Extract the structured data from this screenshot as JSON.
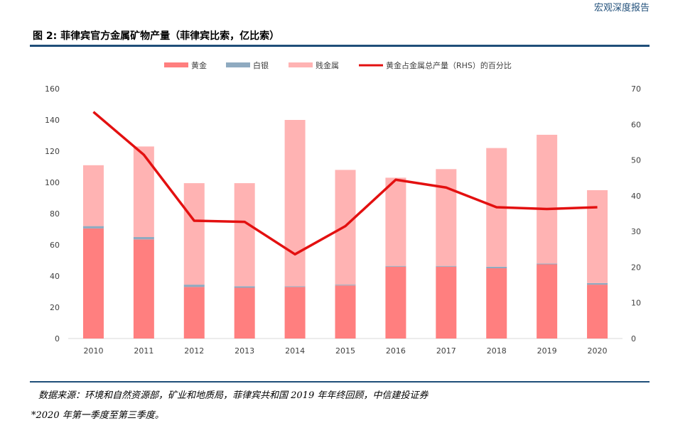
{
  "header": {
    "report_tag": "宏观深度报告"
  },
  "figure": {
    "title": "图 2: 菲律宾官方金属矿物产量（菲律宾比索，亿比索）"
  },
  "footer": {
    "source": "数据来源：环境和自然资源部，矿业和地质局，菲律宾共和国 2019 年年终回顾，中信建投证券",
    "note": "*2020 年第一季度至第三季度。"
  },
  "chart_data": {
    "type": "bar",
    "stacked": true,
    "categories": [
      "2010",
      "2011",
      "2012",
      "2013",
      "2014",
      "2015",
      "2016",
      "2017",
      "2018",
      "2019",
      "2020"
    ],
    "series": [
      {
        "name": "黄金",
        "color": "#ff7f7f",
        "values": [
          70.5,
          63.5,
          33,
          32.5,
          33,
          34,
          46,
          46,
          45,
          47.5,
          34.5
        ]
      },
      {
        "name": "白银",
        "color": "#8faac0",
        "values": [
          1.5,
          1.5,
          1.5,
          1.0,
          0.5,
          0.5,
          0.5,
          0.5,
          1.0,
          0.5,
          1.0
        ]
      },
      {
        "name": "贱金属",
        "color": "#ffb3b3",
        "values": [
          39,
          58,
          65,
          66,
          106.5,
          73.5,
          56.5,
          62,
          76,
          82.5,
          59.5
        ]
      }
    ],
    "line_series": {
      "name": "黄金占金属总产量（RHS）的百分比",
      "color": "#e31010",
      "axis": "right",
      "values": [
        63.5,
        51.5,
        33.0,
        32.7,
        23.6,
        31.5,
        44.5,
        42.3,
        36.8,
        36.3,
        36.8
      ]
    },
    "left_axis": {
      "min": 0,
      "max": 160,
      "ticks": [
        "0",
        "20",
        "40",
        "60",
        "80",
        "100",
        "120",
        "140",
        "160"
      ]
    },
    "right_axis": {
      "min": 0,
      "max": 70,
      "ticks": [
        "0",
        "10",
        "20",
        "30",
        "40",
        "50",
        "60",
        "70"
      ]
    },
    "legend_position": "top"
  }
}
